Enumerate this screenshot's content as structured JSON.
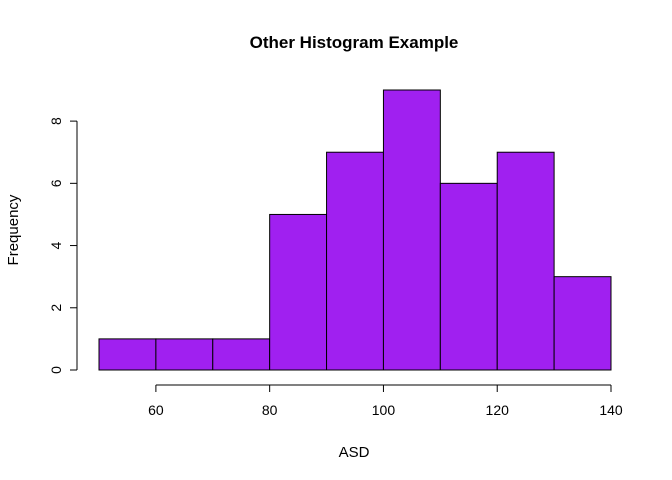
{
  "chart_data": {
    "type": "bar",
    "title": "Other Histogram Example",
    "xlabel": "ASD",
    "ylabel": "Frequency",
    "bins": [
      {
        "from": 50,
        "to": 60,
        "count": 1
      },
      {
        "from": 60,
        "to": 70,
        "count": 1
      },
      {
        "from": 70,
        "to": 80,
        "count": 1
      },
      {
        "from": 80,
        "to": 90,
        "count": 5
      },
      {
        "from": 90,
        "to": 100,
        "count": 7
      },
      {
        "from": 100,
        "to": 110,
        "count": 9
      },
      {
        "from": 110,
        "to": 120,
        "count": 6
      },
      {
        "from": 120,
        "to": 130,
        "count": 7
      },
      {
        "from": 130,
        "to": 140,
        "count": 3
      }
    ],
    "xticks": [
      60,
      80,
      100,
      120,
      140
    ],
    "yticks": [
      0,
      2,
      4,
      6,
      8
    ],
    "xlim": [
      50,
      140
    ],
    "ylim": [
      0,
      9
    ],
    "bar_color": "#a020f0",
    "grid": false
  }
}
